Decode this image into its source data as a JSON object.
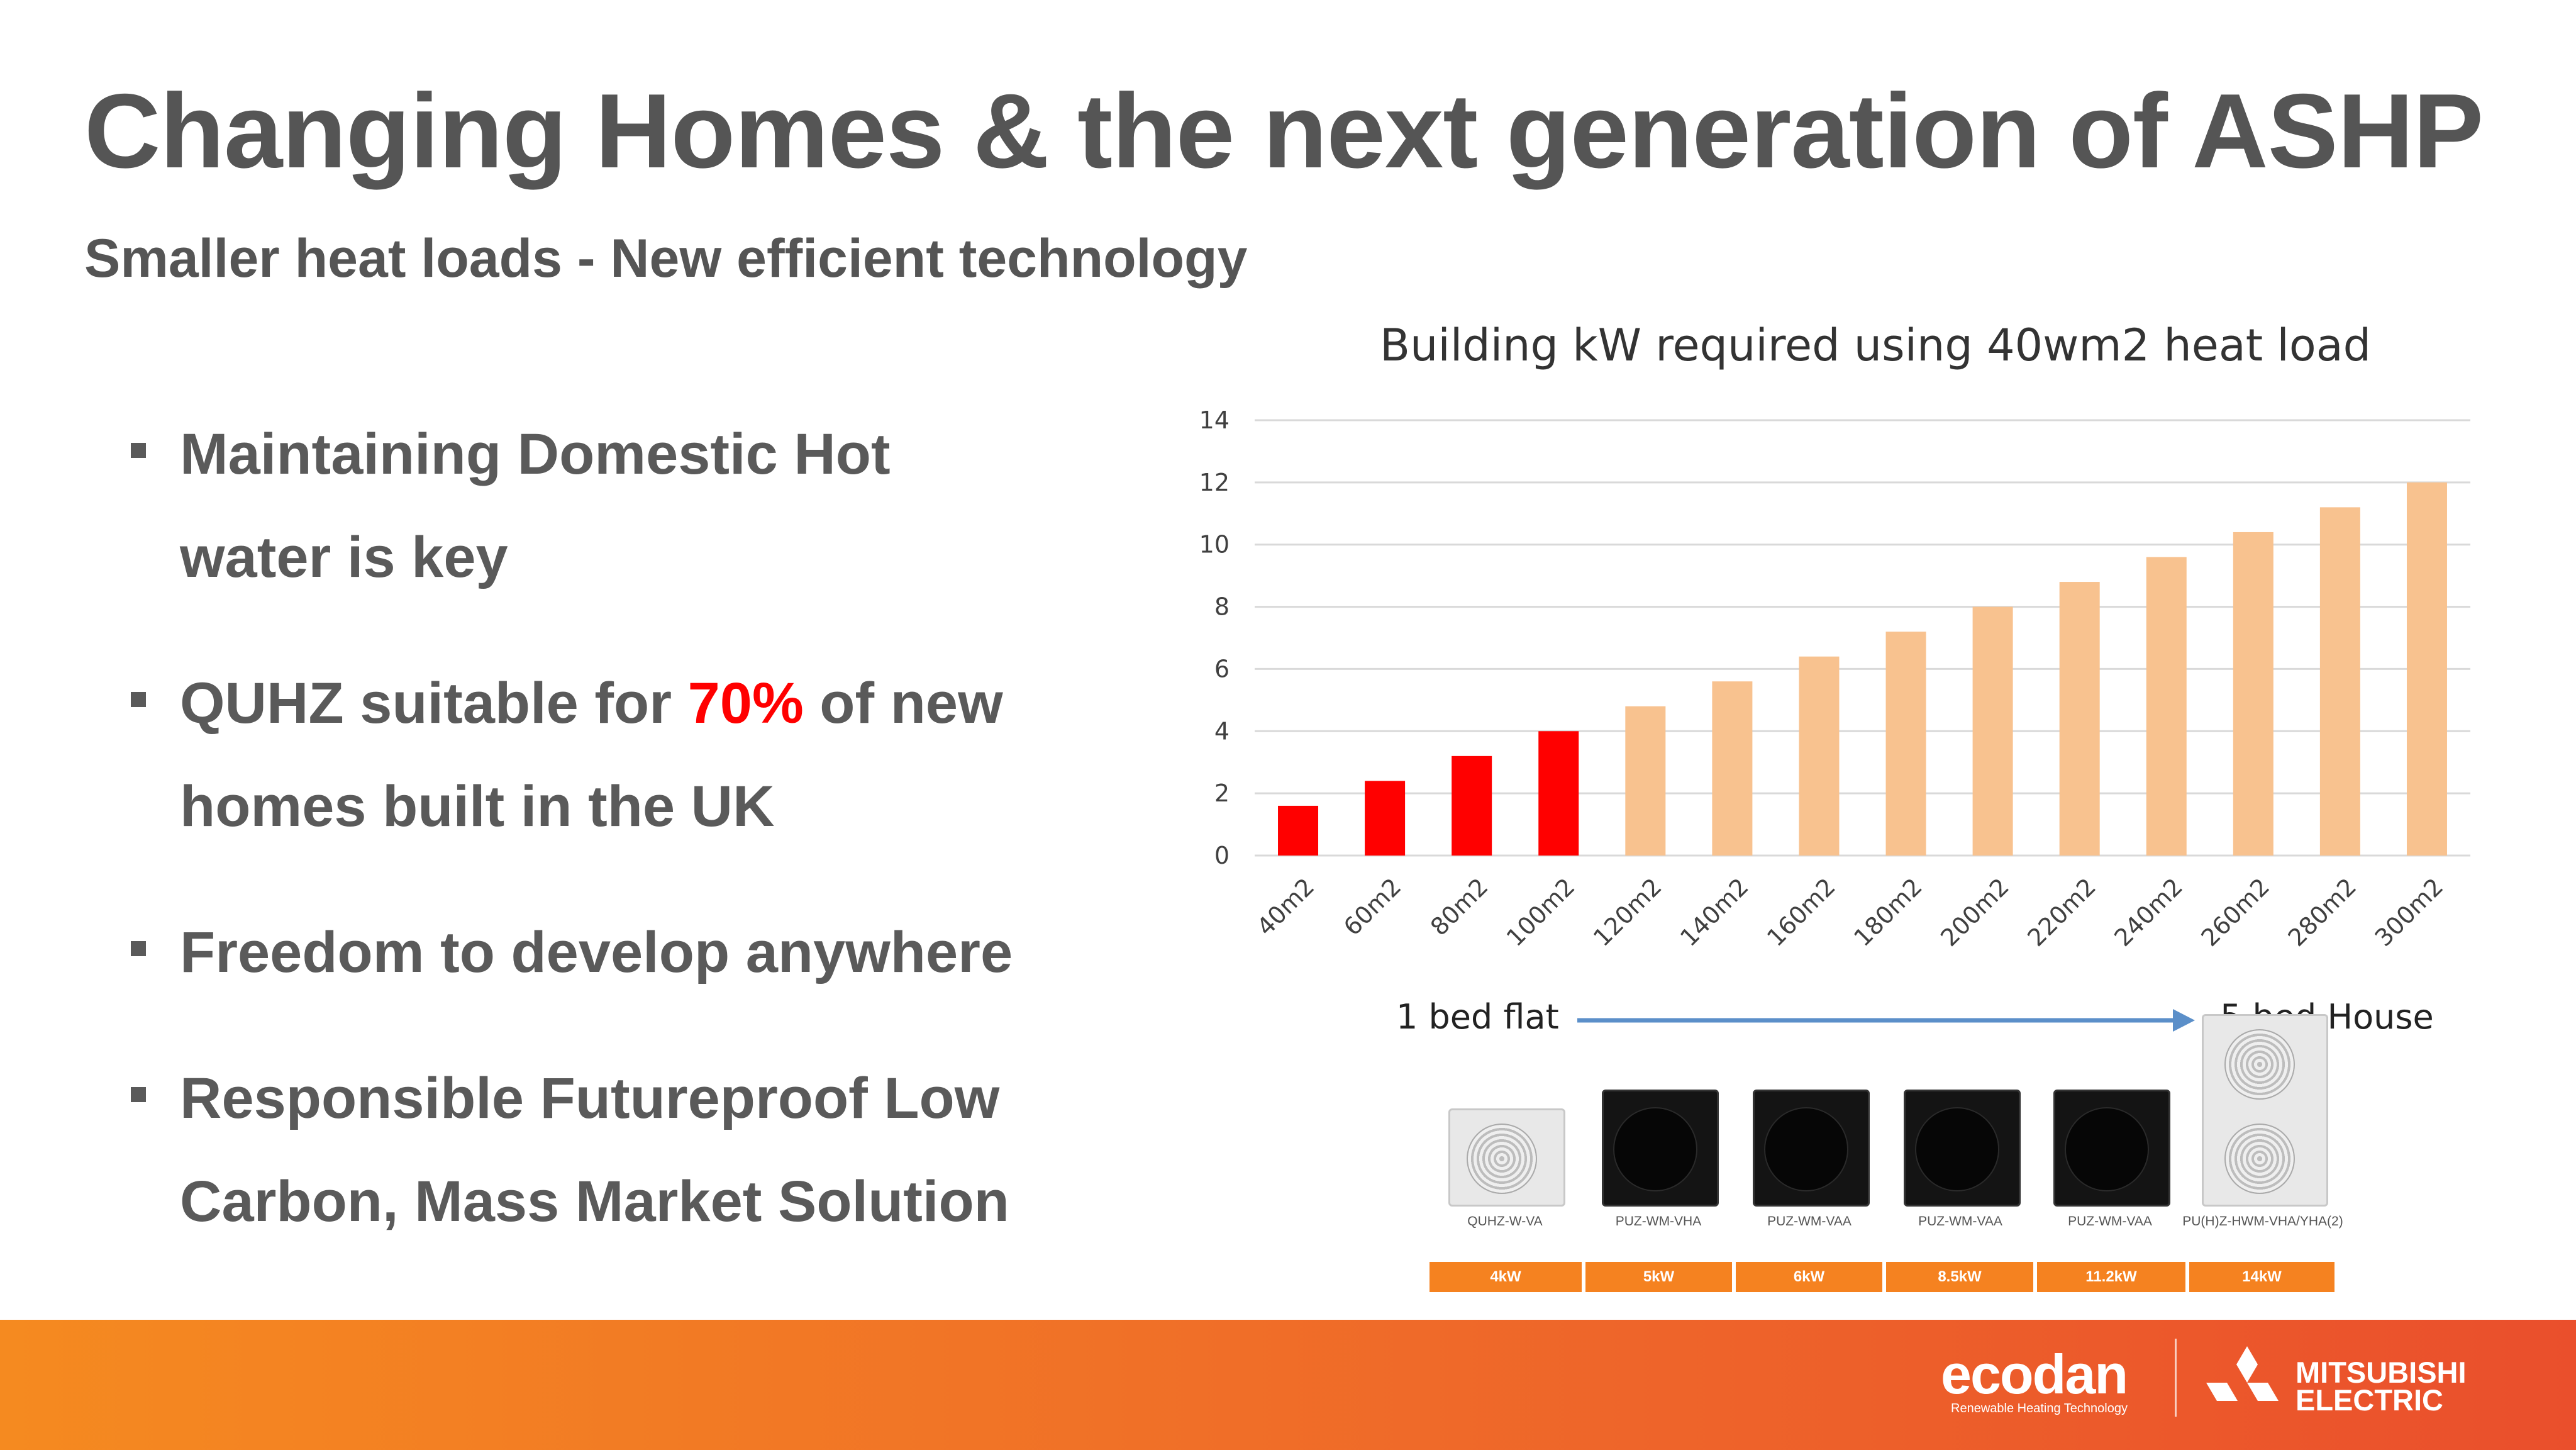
{
  "title": "Changing Homes & the next generation of ASHP",
  "subtitle": "Smaller heat loads - New efficient technology",
  "bullets": [
    {
      "lines": [
        "Maintaining Domestic Hot",
        "water is key"
      ]
    },
    {
      "line1_a": "QUHZ suitable for ",
      "line1_highlight": "70%",
      "line1_b": " of new",
      "line2": "homes built in the UK"
    },
    {
      "lines": [
        "Freedom to develop anywhere"
      ]
    },
    {
      "lines": [
        "Responsible Futureproof Low",
        "Carbon, Mass Market Solution"
      ]
    }
  ],
  "colors": {
    "highlight": "#ff0000",
    "bar_small": "#ff0000",
    "bar_large": "#f8c28f",
    "accent_orange": "#f58220"
  },
  "chart_data": {
    "type": "bar",
    "title": "Building kW required  using 40wm2 heat load",
    "categories": [
      "40m2",
      "60m2",
      "80m2",
      "100m2",
      "120m2",
      "140m2",
      "160m2",
      "180m2",
      "200m2",
      "220m2",
      "240m2",
      "260m2",
      "280m2",
      "300m2"
    ],
    "values": [
      1.6,
      2.4,
      3.2,
      4.0,
      4.8,
      5.6,
      6.4,
      7.2,
      8.0,
      8.8,
      9.6,
      10.4,
      11.2,
      12.0
    ],
    "highlight_count": 4,
    "ylim": [
      0,
      14
    ],
    "yticks": [
      0,
      2,
      4,
      6,
      8,
      10,
      12,
      14
    ],
    "grid": true,
    "legend": "none"
  },
  "scale": {
    "left": "1 bed flat",
    "right": "5 bed House"
  },
  "units": [
    {
      "model": "QUHZ-W-VA",
      "kw": "4kW",
      "color": "white"
    },
    {
      "model": "PUZ-WM-VHA",
      "kw": "5kW",
      "color": "black"
    },
    {
      "model": "PUZ-WM-VAA",
      "kw": "6kW",
      "color": "black"
    },
    {
      "model": "PUZ-WM-VAA",
      "kw": "8.5kW",
      "color": "black"
    },
    {
      "model": "PUZ-WM-VAA",
      "kw": "11.2kW",
      "color": "black"
    },
    {
      "model": "PU(H)Z-HWM-VHA/YHA(2)",
      "kw": "14kW",
      "color": "white"
    }
  ],
  "footer": {
    "brand": "ecodan",
    "brand_tagline": "Renewable Heating Technology",
    "maker_line1": "MITSUBISHI",
    "maker_line2": "ELECTRIC"
  }
}
